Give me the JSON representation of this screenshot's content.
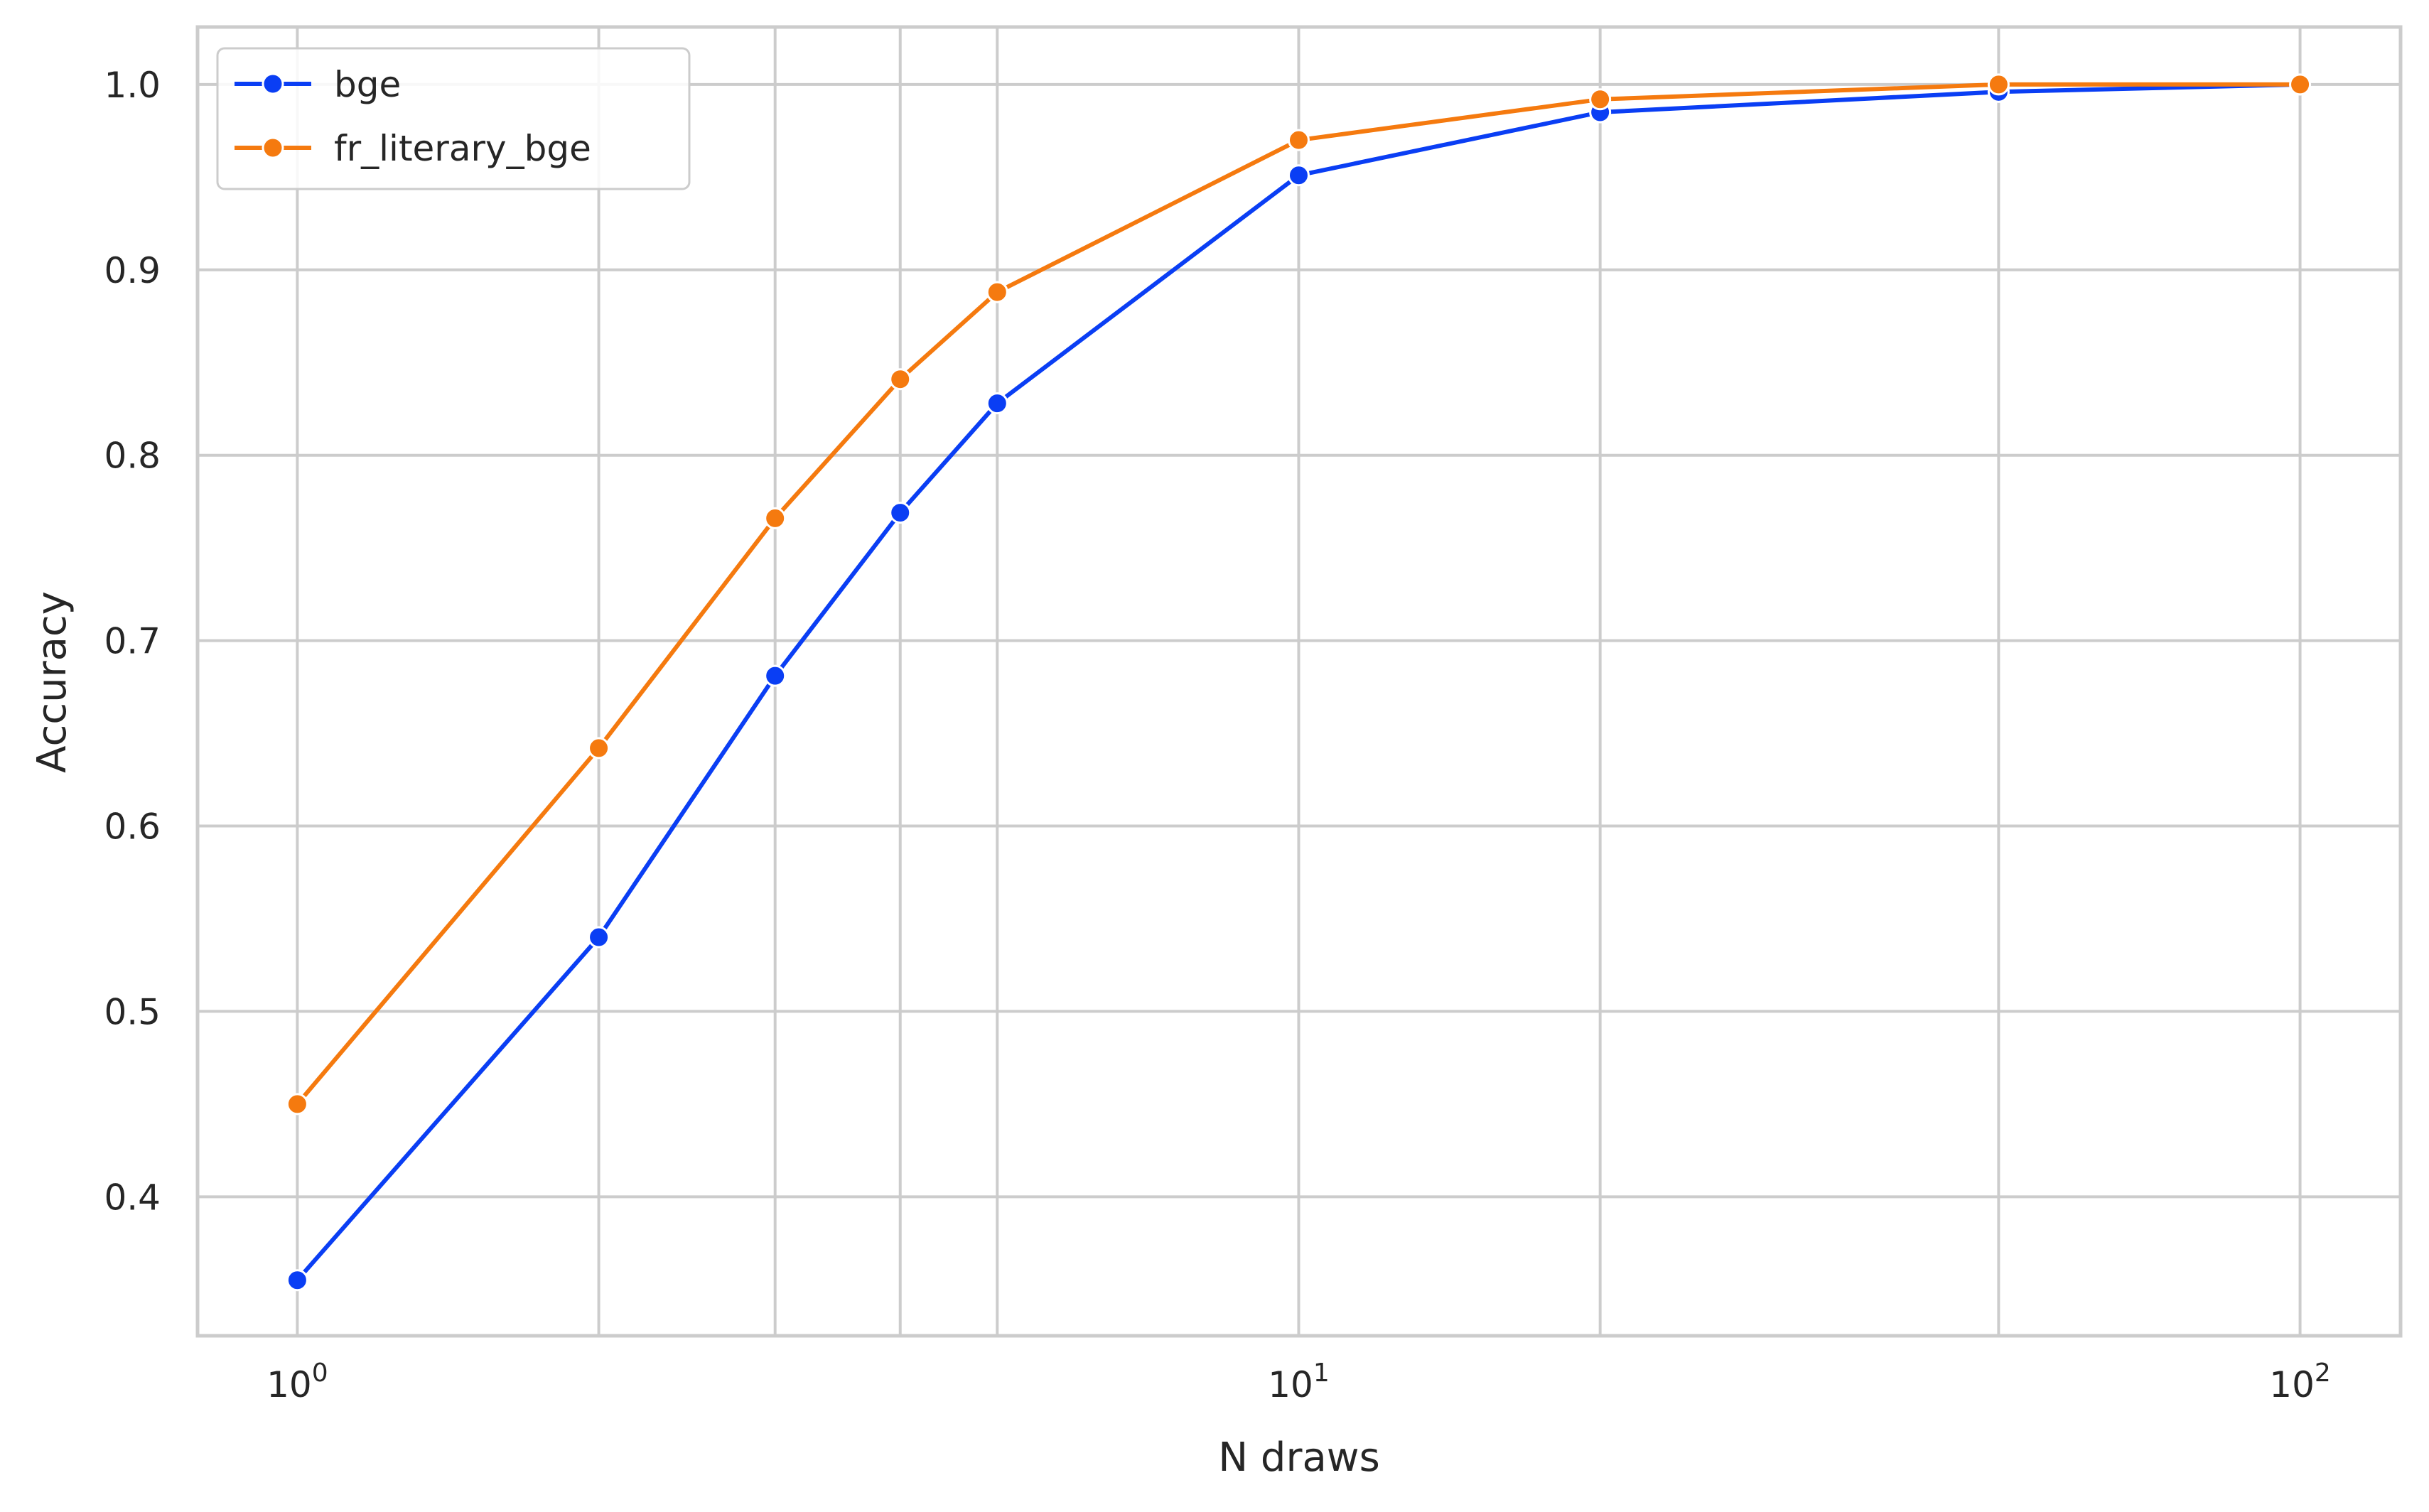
{
  "chart_data": {
    "type": "line",
    "xlabel": "N draws",
    "ylabel": "Accuracy",
    "xscale": "log",
    "xlim": [
      0.795,
      126
    ],
    "ylim": [
      0.325,
      1.031
    ],
    "grid": true,
    "legend": "top-left",
    "x": [
      1,
      2,
      3,
      4,
      5,
      10,
      20,
      50,
      100
    ],
    "series": [
      {
        "name": "bge",
        "color": "#0a3ef4",
        "values": [
          0.355,
          0.54,
          0.681,
          0.769,
          0.828,
          0.951,
          0.985,
          0.996,
          1.0
        ]
      },
      {
        "name": "fr_literary_bge",
        "color": "#f57a0f",
        "values": [
          0.45,
          0.642,
          0.766,
          0.841,
          0.888,
          0.97,
          0.992,
          1.0,
          1.0
        ]
      }
    ],
    "yticks": [
      {
        "value": 0.4,
        "label": "0.4"
      },
      {
        "value": 0.5,
        "label": "0.5"
      },
      {
        "value": 0.6,
        "label": "0.6"
      },
      {
        "value": 0.7,
        "label": "0.7"
      },
      {
        "value": 0.8,
        "label": "0.8"
      },
      {
        "value": 0.9,
        "label": "0.9"
      },
      {
        "value": 1.0,
        "label": "1.0"
      }
    ],
    "xticks": [
      {
        "value": 1,
        "base": "10",
        "exp": "0"
      },
      {
        "value": 10,
        "base": "10",
        "exp": "1"
      },
      {
        "value": 100,
        "base": "10",
        "exp": "2"
      }
    ],
    "xgrid": [
      1,
      2,
      3,
      4,
      5,
      10,
      20,
      50,
      100
    ]
  }
}
